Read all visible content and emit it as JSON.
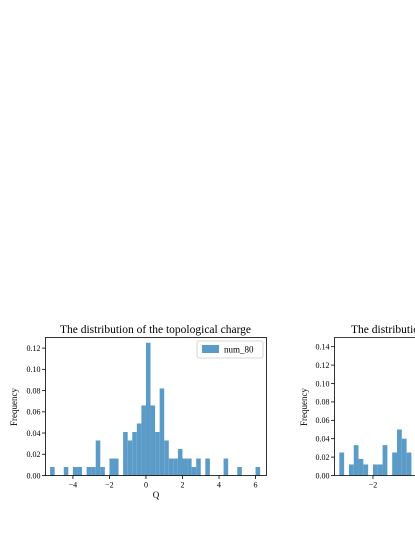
{
  "colors": {
    "bar": "#5b9bc8",
    "axis": "#000000",
    "background": "#ffffff"
  },
  "chart_data": [
    {
      "type": "bar",
      "title": "The distribution of the topological charge",
      "xlabel": "Q",
      "ylabel": "Frequency",
      "xlim": [
        -5.5,
        6.6
      ],
      "ylim": [
        0,
        0.13
      ],
      "xticks": [
        -4,
        -2,
        0,
        2,
        4,
        6
      ],
      "xtick_labels": [
        "−4",
        "−2",
        "0",
        "2",
        "4",
        "6"
      ],
      "yticks": [
        0,
        0.02,
        0.04,
        0.06,
        0.08,
        0.1,
        0.12
      ],
      "ytick_labels": [
        "0.00",
        "0.02",
        "0.04",
        "0.06",
        "0.08",
        "0.10",
        "0.12"
      ],
      "legend": {
        "placement": "top-right",
        "entries": [
          "num_80"
        ]
      },
      "bin_width": 0.25,
      "series": [
        {
          "name": "num_80",
          "bins": [
            [
              -5.25,
              0.008
            ],
            [
              -4.5,
              0.008
            ],
            [
              -4.0,
              0.008
            ],
            [
              -3.75,
              0.008
            ],
            [
              -3.25,
              0.008
            ],
            [
              -3.0,
              0.008
            ],
            [
              -2.75,
              0.033
            ],
            [
              -2.5,
              0.008
            ],
            [
              -2.0,
              0.016
            ],
            [
              -1.75,
              0.016
            ],
            [
              -1.25,
              0.041
            ],
            [
              -1.0,
              0.033
            ],
            [
              -0.75,
              0.041
            ],
            [
              -0.5,
              0.049
            ],
            [
              -0.25,
              0.066
            ],
            [
              0.0,
              0.125
            ],
            [
              0.25,
              0.066
            ],
            [
              0.5,
              0.041
            ],
            [
              0.75,
              0.082
            ],
            [
              1.0,
              0.033
            ],
            [
              1.25,
              0.016
            ],
            [
              1.5,
              0.016
            ],
            [
              1.75,
              0.025
            ],
            [
              2.0,
              0.016
            ],
            [
              2.25,
              0.016
            ],
            [
              2.5,
              0.008
            ],
            [
              2.75,
              0.016
            ],
            [
              3.25,
              0.016
            ],
            [
              4.25,
              0.016
            ],
            [
              5.0,
              0.008
            ],
            [
              6.0,
              0.008
            ]
          ]
        }
      ]
    },
    {
      "type": "bar",
      "title": "The distributio",
      "ylabel": "Frequency",
      "xlim": [
        -4.0,
        1.2
      ],
      "ylim": [
        0,
        0.15
      ],
      "xticks": [
        -2
      ],
      "xtick_labels": [
        "−2"
      ],
      "yticks": [
        0,
        0.02,
        0.04,
        0.06,
        0.08,
        0.1,
        0.12,
        0.14
      ],
      "ytick_labels": [
        "0.00",
        "0.02",
        "0.04",
        "0.06",
        "0.08",
        "0.10",
        "0.12",
        "0.14"
      ],
      "bin_width": 0.25,
      "series": [
        {
          "bins": [
            [
              -3.75,
              0.025
            ],
            [
              -3.25,
              0.012
            ],
            [
              -3.0,
              0.033
            ],
            [
              -2.75,
              0.018
            ],
            [
              -2.5,
              0.012
            ],
            [
              -2.0,
              0.012
            ],
            [
              -1.75,
              0.012
            ],
            [
              -1.5,
              0.033
            ],
            [
              -1.25,
              0.0
            ],
            [
              -1.0,
              0.025
            ],
            [
              -0.75,
              0.05
            ],
            [
              -0.5,
              0.04
            ],
            [
              -0.25,
              0.025
            ]
          ]
        }
      ]
    }
  ]
}
